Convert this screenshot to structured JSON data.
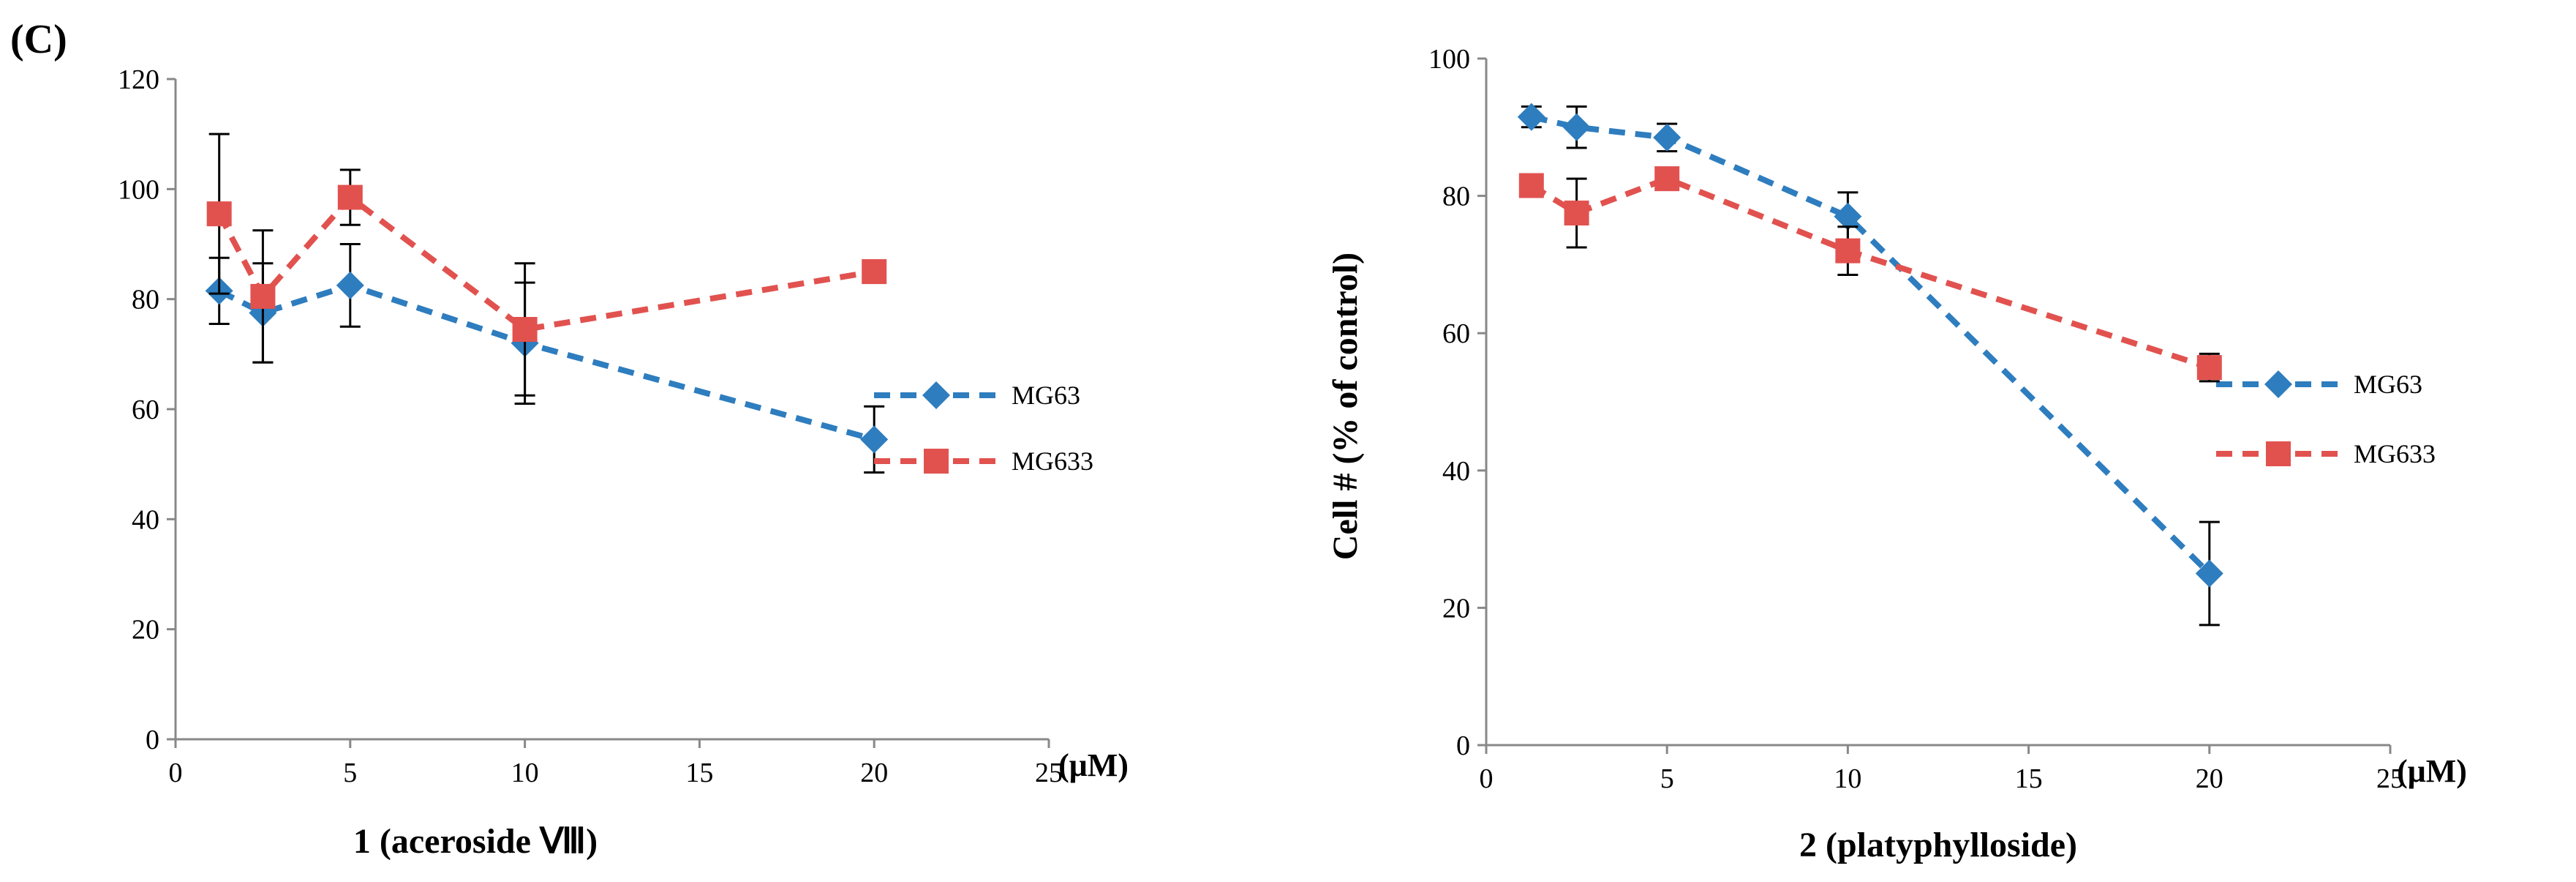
{
  "panel_label": "(C)",
  "colors": {
    "MG63": "#2e7dbf",
    "MG633": "#e1524f",
    "axis": "#888888",
    "errbar": "#000000"
  },
  "chart_data": [
    {
      "type": "line",
      "xlabel": "1 (aceroside Ⅷ)",
      "ylabel": "",
      "unit": "(μM)",
      "xlim": [
        0,
        25
      ],
      "ylim": [
        0,
        120
      ],
      "xticks": [
        0,
        5,
        10,
        15,
        20,
        25
      ],
      "yticks": [
        0,
        20,
        40,
        60,
        80,
        100,
        120
      ],
      "grid": false,
      "legend": "right",
      "x": [
        1.25,
        2.5,
        5,
        10,
        20
      ],
      "series": [
        {
          "name": "MG63",
          "marker": "diamond",
          "values": [
            81.5,
            77.5,
            82.5,
            72,
            54.5
          ],
          "errors": [
            6,
            9,
            7.5,
            11,
            6
          ]
        },
        {
          "name": "MG633",
          "marker": "square",
          "values": [
            95.5,
            80.5,
            98.5,
            74.5,
            85
          ],
          "errors": [
            14.5,
            12,
            5,
            12,
            1.5
          ]
        }
      ]
    },
    {
      "type": "line",
      "xlabel": "2 (platyphylloside)",
      "ylabel": "Cell # (% of control)",
      "unit": "(μM)",
      "xlim": [
        0,
        25
      ],
      "ylim": [
        0,
        100
      ],
      "xticks": [
        0,
        5,
        10,
        15,
        20,
        25
      ],
      "yticks": [
        0,
        20,
        40,
        60,
        80,
        100
      ],
      "grid": false,
      "legend": "right",
      "x": [
        1.25,
        2.5,
        5,
        10,
        20
      ],
      "series": [
        {
          "name": "MG63",
          "marker": "diamond",
          "values": [
            91.5,
            90,
            88.5,
            77,
            25
          ],
          "errors": [
            1.5,
            3,
            2,
            3.5,
            7.5
          ]
        },
        {
          "name": "MG633",
          "marker": "square",
          "values": [
            81.5,
            77.5,
            82.5,
            72,
            55
          ],
          "errors": [
            1,
            5,
            1,
            3.5,
            2
          ]
        }
      ]
    }
  ]
}
